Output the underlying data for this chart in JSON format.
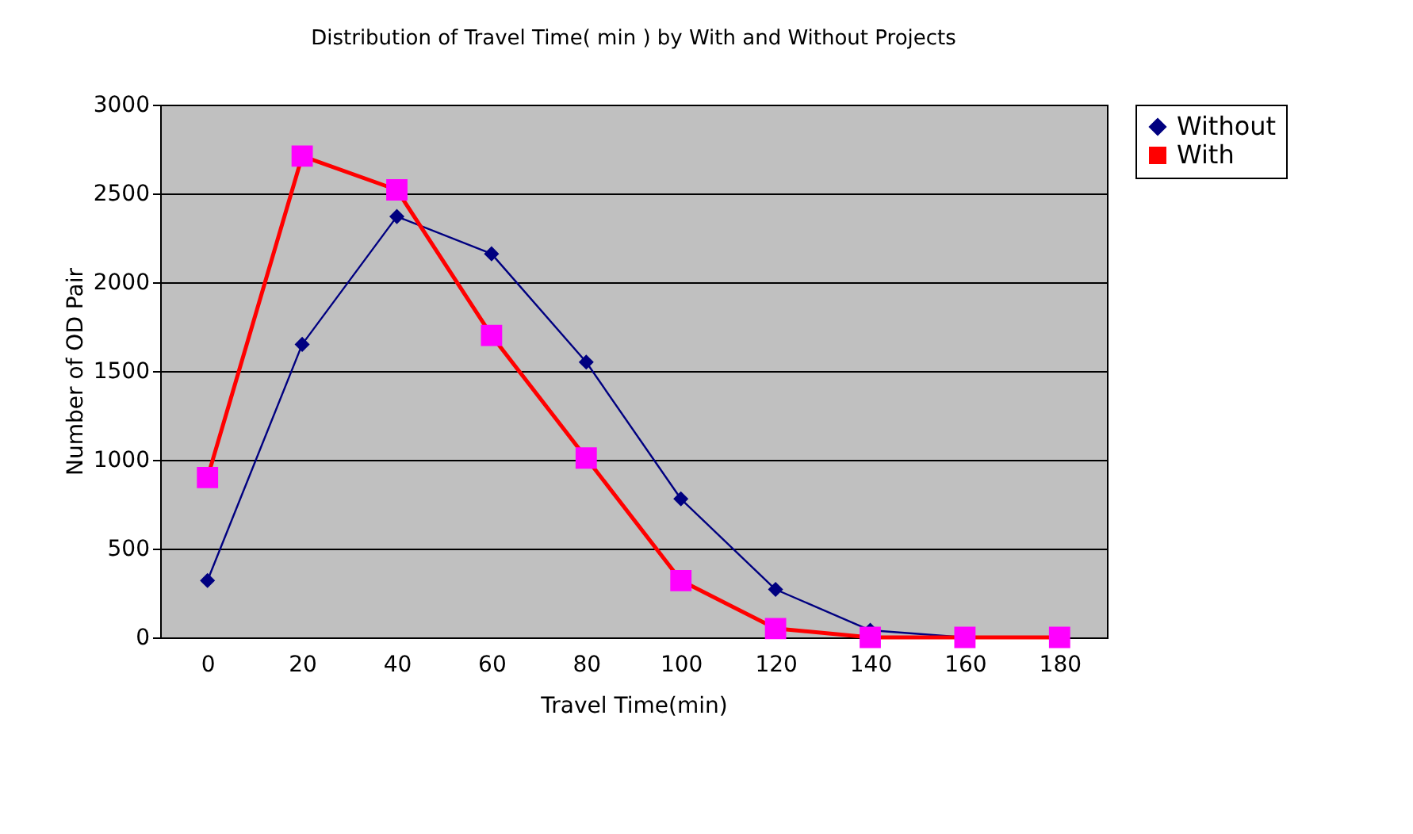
{
  "chart_data": {
    "type": "line",
    "title": "Distribution of Travel Time( min ) by With and Without Projects",
    "xlabel": "Travel Time(min)",
    "ylabel": "Number of OD Pair",
    "categories": [
      "0",
      "20",
      "40",
      "60",
      "80",
      "100",
      "120",
      "140",
      "160",
      "180"
    ],
    "series": [
      {
        "name": "Without",
        "color": "#000080",
        "marker": "diamond",
        "line_style": "solid",
        "values": [
          320,
          1650,
          2370,
          2160,
          1550,
          780,
          270,
          40,
          0,
          0
        ]
      },
      {
        "name": "With",
        "color": "#ff0000",
        "marker": "square",
        "line_style": "solid",
        "values": [
          900,
          2710,
          2520,
          1700,
          1010,
          320,
          50,
          0,
          0,
          0
        ]
      }
    ],
    "ylim": [
      0,
      3000
    ],
    "yticks": [
      0,
      500,
      1000,
      1500,
      2000,
      2500,
      3000
    ],
    "grid": "y",
    "legend": "right"
  }
}
